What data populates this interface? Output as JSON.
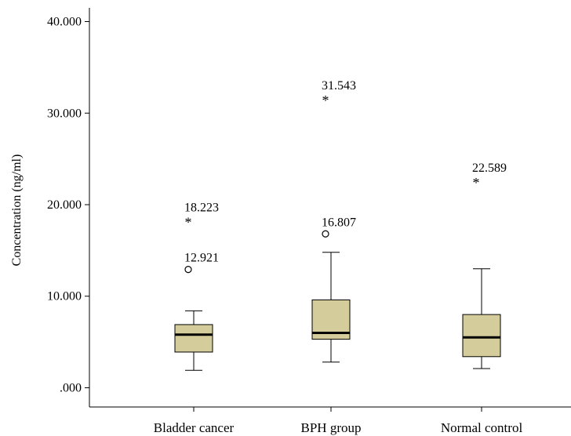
{
  "chart_data": {
    "type": "box",
    "title": "",
    "xlabel": "",
    "ylabel": "Concentration (ng/ml)",
    "ylim": [
      -2.1,
      41.5
    ],
    "yticks": [
      0,
      10,
      20,
      30,
      40
    ],
    "ytick_labels": [
      ".000",
      "10.000",
      "20.000",
      "30.000",
      "40.000"
    ],
    "grid": false,
    "categories": [
      "Bladder cancer",
      "BPH group",
      "Normal control"
    ],
    "box_color": "#d4cc9a",
    "boxes": [
      {
        "name": "Bladder cancer",
        "whisker_low": 1.9,
        "q1": 3.9,
        "median": 5.8,
        "q3": 6.9,
        "whisker_high": 8.4,
        "outliers": [
          {
            "value": 12.921,
            "label": "12.921",
            "marker": "circle"
          }
        ],
        "extremes": [
          {
            "value": 18.223,
            "label": "18.223",
            "marker": "star"
          }
        ]
      },
      {
        "name": "BPH group",
        "whisker_low": 2.8,
        "q1": 5.3,
        "median": 6.0,
        "q3": 9.6,
        "whisker_high": 14.8,
        "outliers": [
          {
            "value": 16.807,
            "label": "16.807",
            "marker": "circle"
          }
        ],
        "extremes": [
          {
            "value": 31.543,
            "label": "31.543",
            "marker": "star"
          }
        ]
      },
      {
        "name": "Normal control",
        "whisker_low": 2.1,
        "q1": 3.4,
        "median": 5.5,
        "q3": 8.0,
        "whisker_high": 13.0,
        "outliers": [],
        "extremes": [
          {
            "value": 22.589,
            "label": "22.589",
            "marker": "star"
          }
        ]
      }
    ]
  }
}
